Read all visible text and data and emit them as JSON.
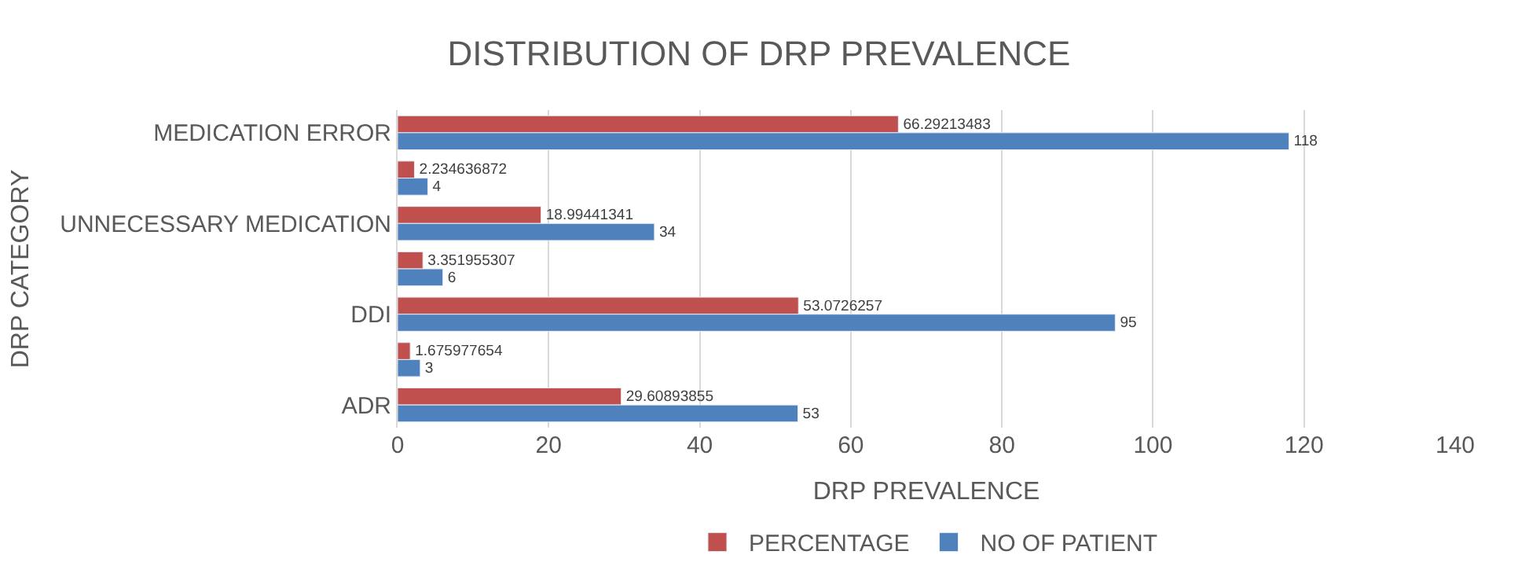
{
  "chart_data": {
    "type": "bar",
    "orientation": "horizontal",
    "title": "DISTRIBUTION OF DRP PREVALENCE",
    "xlabel": "DRP PREVALENCE",
    "ylabel": "DRP CATEGORY",
    "categories": [
      "MEDICATION ERROR",
      null,
      "UNNECESSARY MEDICATION",
      null,
      "DDI",
      null,
      "ADR"
    ],
    "series": [
      {
        "name": "PERCENTAGE",
        "color": "#c0504d",
        "values": [
          66.29213483,
          2.234636872,
          18.99441341,
          3.351955307,
          53.0726257,
          1.675977654,
          29.60893855
        ]
      },
      {
        "name": "NO OF PATIENT",
        "color": "#4f81bd",
        "values": [
          118,
          4,
          34,
          6,
          95,
          3,
          53
        ]
      }
    ],
    "xlim": [
      0,
      140
    ],
    "xticks": [
      0,
      20,
      40,
      60,
      80,
      100,
      120,
      140
    ],
    "grid": "x",
    "legend": "bottom",
    "data_labels": true
  }
}
